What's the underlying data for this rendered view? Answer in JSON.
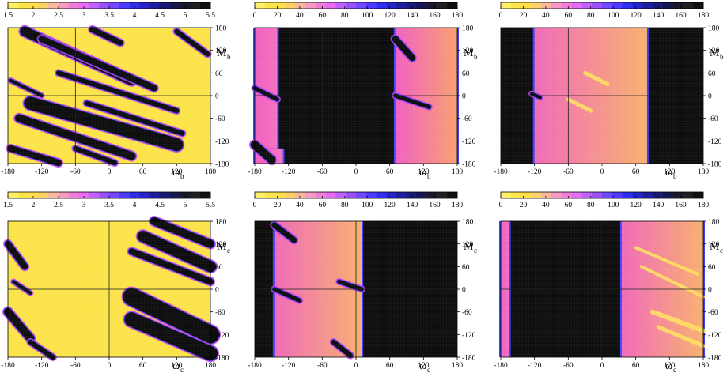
{
  "colorbars": {
    "ratio": {
      "ticks": [
        "1.5",
        "2",
        "2.5",
        "3",
        "3.5",
        "4",
        "4.5",
        "5",
        "5.5"
      ],
      "colors": [
        "#fff06a",
        "#fbe64a",
        "#ffe04b",
        "#fbd06a",
        "#f8b8a0",
        "#f49ac4",
        "#f07ed8",
        "#e66cf0",
        "#c060ff",
        "#9a50f8",
        "#7048ff",
        "#4d3cff",
        "#2e2ef0",
        "#2424c8",
        "#1e1e9c",
        "#1a1a74",
        "#161650",
        "#181828",
        "#202020",
        "#101010"
      ]
    },
    "angle": {
      "ticks": [
        "0",
        "20",
        "40",
        "60",
        "80",
        "100",
        "120",
        "140",
        "160",
        "180"
      ],
      "colors": [
        "#fff06a",
        "#fbe64a",
        "#ffe04b",
        "#fbd06a",
        "#f8b8a0",
        "#f49ac4",
        "#f07ed8",
        "#e66cf0",
        "#c060ff",
        "#9a50f8",
        "#7048ff",
        "#4d3cff",
        "#2e2ef0",
        "#2424c8",
        "#1e1e9c",
        "#1a1a74",
        "#161650",
        "#181828",
        "#202020",
        "#101010"
      ]
    }
  },
  "colors": {
    "yellow": "#fbe34a",
    "black": "#0d0d0d",
    "blue": "#4040ff",
    "magenta": "#d040e0",
    "pink": "#f070c8",
    "orange": "#f7a860",
    "peach": "#f8b880"
  },
  "chart_data": [
    {
      "type": "heatmap",
      "panel": "top-left",
      "xlabel": "ω",
      "xlabel_sub": "b",
      "ylabel": "M",
      "ylabel_sub": "b",
      "xlim": [
        -180,
        180
      ],
      "ylim": [
        -180,
        180
      ],
      "xticks": [
        "-180",
        "-120",
        "-60",
        "0",
        "60",
        "120",
        "180"
      ],
      "yticks": [
        "180",
        "120",
        "60",
        "0",
        "-60",
        "-120",
        "-180"
      ],
      "colorbar": "ratio",
      "colorbar_range": [
        1.5,
        5.5
      ],
      "ref_lines": {
        "x": -60,
        "y": 0
      },
      "bands": [
        {
          "kind": "dark",
          "x1": -150,
          "y1": 170,
          "x2": 40,
          "y2": 40,
          "w": 12
        },
        {
          "kind": "dark",
          "x1": -120,
          "y1": 150,
          "x2": 80,
          "y2": 20,
          "w": 8
        },
        {
          "kind": "dark",
          "x1": -140,
          "y1": -20,
          "x2": 120,
          "y2": -130,
          "w": 16
        },
        {
          "kind": "dark",
          "x1": -160,
          "y1": -60,
          "x2": 40,
          "y2": -160,
          "w": 10
        },
        {
          "kind": "dark",
          "x1": -90,
          "y1": 60,
          "x2": 120,
          "y2": -40,
          "w": 6
        },
        {
          "kind": "dark",
          "x1": -40,
          "y1": -20,
          "x2": 130,
          "y2": -100,
          "w": 6
        },
        {
          "kind": "dark",
          "x1": -175,
          "y1": -140,
          "x2": -90,
          "y2": -178,
          "w": 8
        },
        {
          "kind": "dark",
          "x1": -30,
          "y1": 175,
          "x2": 20,
          "y2": 140,
          "w": 7
        },
        {
          "kind": "dark",
          "x1": 120,
          "y1": 170,
          "x2": 175,
          "y2": 110,
          "w": 6
        },
        {
          "kind": "dark",
          "x1": -175,
          "y1": 40,
          "x2": -120,
          "y2": 0,
          "w": 4
        },
        {
          "kind": "dark",
          "x1": -60,
          "y1": -140,
          "x2": 10,
          "y2": -178,
          "w": 6
        }
      ]
    },
    {
      "type": "heatmap",
      "panel": "top-middle",
      "xlabel": "ω",
      "xlabel_sub": "b",
      "ylabel": "M",
      "ylabel_sub": "b",
      "xlim": [
        -180,
        180
      ],
      "ylim": [
        -180,
        180
      ],
      "xticks": [
        "-180",
        "-120",
        "-60",
        "0",
        "60",
        "120",
        "180"
      ],
      "yticks": [
        "180",
        "120",
        "60",
        "0",
        "-60",
        "-120",
        "-180"
      ],
      "colorbar": "angle",
      "colorbar_range": [
        0,
        180
      ],
      "ref_lines": {
        "x": -60,
        "y": 0
      },
      "regions": [
        {
          "x1": -180,
          "x2": -140,
          "y1": -140,
          "y2": 180,
          "gradient": "pink"
        },
        {
          "x1": -180,
          "x2": -130,
          "y1": -180,
          "y2": -140,
          "gradient": "pink"
        },
        {
          "x1": 70,
          "x2": 180,
          "y1": -180,
          "y2": 180,
          "gradient": "pink-orange"
        }
      ],
      "bands": [
        {
          "kind": "dark",
          "x1": -180,
          "y1": 20,
          "x2": -140,
          "y2": -10,
          "w": 5
        },
        {
          "kind": "dark",
          "x1": 70,
          "y1": 0,
          "x2": 130,
          "y2": -30,
          "w": 5
        },
        {
          "kind": "dark",
          "x1": 70,
          "y1": 150,
          "x2": 100,
          "y2": 100,
          "w": 8
        },
        {
          "kind": "dark",
          "x1": -180,
          "y1": -130,
          "x2": -150,
          "y2": -170,
          "w": 10
        }
      ]
    },
    {
      "type": "heatmap",
      "panel": "top-right",
      "xlabel": "ω",
      "xlabel_sub": "b",
      "ylabel": "M",
      "ylabel_sub": "b",
      "xlim": [
        -180,
        180
      ],
      "ylim": [
        -180,
        180
      ],
      "xticks": [
        "-180",
        "-120",
        "-60",
        "0",
        "60",
        "120",
        "180"
      ],
      "yticks": [
        "180",
        "120",
        "60",
        "0",
        "-60",
        "-120",
        "-180"
      ],
      "colorbar": "angle",
      "colorbar_range": [
        0,
        180
      ],
      "ref_lines": {
        "x": -60,
        "y": 0
      },
      "regions": [
        {
          "x1": -120,
          "x2": 80,
          "y1": -180,
          "y2": 180,
          "gradient": "orange"
        }
      ],
      "bands": [
        {
          "kind": "light",
          "x1": -30,
          "y1": 60,
          "x2": 10,
          "y2": 30,
          "w": 5
        },
        {
          "kind": "light",
          "x1": -60,
          "y1": -10,
          "x2": -20,
          "y2": -40,
          "w": 5
        },
        {
          "kind": "dark",
          "x1": -125,
          "y1": 5,
          "x2": -110,
          "y2": -5,
          "w": 4
        }
      ]
    },
    {
      "type": "heatmap",
      "panel": "bottom-left",
      "xlabel": "ω",
      "xlabel_sub": "c",
      "ylabel": "M",
      "ylabel_sub": "c",
      "xlim": [
        -180,
        180
      ],
      "ylim": [
        -180,
        180
      ],
      "xticks": [
        "-180",
        "-120",
        "-60",
        "0",
        "60",
        "120",
        "180"
      ],
      "yticks": [
        "180",
        "120",
        "60",
        "0",
        "-60",
        "-120",
        "-180"
      ],
      "colorbar": "ratio",
      "colorbar_range": [
        1.5,
        5.5
      ],
      "ref_lines": {
        "x": 0,
        "y": 0
      },
      "bands": [
        {
          "kind": "dark",
          "x1": 80,
          "y1": 180,
          "x2": 180,
          "y2": 120,
          "w": 10
        },
        {
          "kind": "dark",
          "x1": 60,
          "y1": 140,
          "x2": 180,
          "y2": 60,
          "w": 14
        },
        {
          "kind": "dark",
          "x1": 40,
          "y1": 100,
          "x2": 180,
          "y2": 20,
          "w": 8
        },
        {
          "kind": "dark",
          "x1": 40,
          "y1": -20,
          "x2": 180,
          "y2": -120,
          "w": 22
        },
        {
          "kind": "dark",
          "x1": 40,
          "y1": -80,
          "x2": 180,
          "y2": -170,
          "w": 18
        },
        {
          "kind": "dark",
          "x1": -180,
          "y1": 120,
          "x2": -150,
          "y2": 60,
          "w": 8
        },
        {
          "kind": "dark",
          "x1": -180,
          "y1": -60,
          "x2": -140,
          "y2": -130,
          "w": 10
        },
        {
          "kind": "dark",
          "x1": -140,
          "y1": -140,
          "x2": -100,
          "y2": -180,
          "w": 6
        },
        {
          "kind": "dark",
          "x1": -170,
          "y1": 20,
          "x2": -140,
          "y2": -10,
          "w": 4
        }
      ]
    },
    {
      "type": "heatmap",
      "panel": "bottom-middle",
      "xlabel": "ω",
      "xlabel_sub": "c",
      "ylabel": "M",
      "ylabel_sub": "c",
      "xlim": [
        -180,
        180
      ],
      "ylim": [
        -180,
        180
      ],
      "xticks": [
        "-180",
        "-120",
        "-60",
        "0",
        "60",
        "120",
        "180"
      ],
      "yticks": [
        "180",
        "120",
        "60",
        "0",
        "-60",
        "-120",
        "-180"
      ],
      "colorbar": "angle",
      "colorbar_range": [
        0,
        180
      ],
      "ref_lines": {
        "x": 0,
        "y": 0
      },
      "regions": [
        {
          "x1": -145,
          "x2": 10,
          "y1": -180,
          "y2": 180,
          "gradient": "orange"
        }
      ],
      "bands": [
        {
          "kind": "dark",
          "x1": -145,
          "y1": 170,
          "x2": -110,
          "y2": 130,
          "w": 7
        },
        {
          "kind": "dark",
          "x1": -145,
          "y1": 0,
          "x2": -100,
          "y2": -30,
          "w": 5
        },
        {
          "kind": "dark",
          "x1": -30,
          "y1": 20,
          "x2": 10,
          "y2": 0,
          "w": 5
        },
        {
          "kind": "dark",
          "x1": -40,
          "y1": -140,
          "x2": -10,
          "y2": -175,
          "w": 6
        }
      ]
    },
    {
      "type": "heatmap",
      "panel": "bottom-right",
      "xlabel": "ω",
      "xlabel_sub": "c",
      "ylabel": "M",
      "ylabel_sub": "c",
      "xlim": [
        -180,
        180
      ],
      "ylim": [
        -180,
        180
      ],
      "xticks": [
        "-180",
        "-120",
        "-60",
        "0",
        "60",
        "120",
        "180"
      ],
      "yticks": [
        "180",
        "120",
        "60",
        "0",
        "-60",
        "-120",
        "-180"
      ],
      "colorbar": "angle",
      "colorbar_range": [
        0,
        180
      ],
      "ref_lines": {
        "x": 0,
        "y": 0
      },
      "regions": [
        {
          "x1": -180,
          "x2": -165,
          "y1": -180,
          "y2": 180,
          "gradient": "pink"
        },
        {
          "x1": 35,
          "x2": 180,
          "y1": -180,
          "y2": 180,
          "gradient": "orange"
        }
      ],
      "bands": [
        {
          "kind": "light",
          "x1": 60,
          "y1": 110,
          "x2": 170,
          "y2": 40,
          "w": 4
        },
        {
          "kind": "light",
          "x1": 70,
          "y1": 60,
          "x2": 180,
          "y2": -20,
          "w": 4
        },
        {
          "kind": "light",
          "x1": 90,
          "y1": -60,
          "x2": 180,
          "y2": -110,
          "w": 6
        },
        {
          "kind": "light",
          "x1": 100,
          "y1": -100,
          "x2": 180,
          "y2": -150,
          "w": 5
        }
      ]
    }
  ]
}
